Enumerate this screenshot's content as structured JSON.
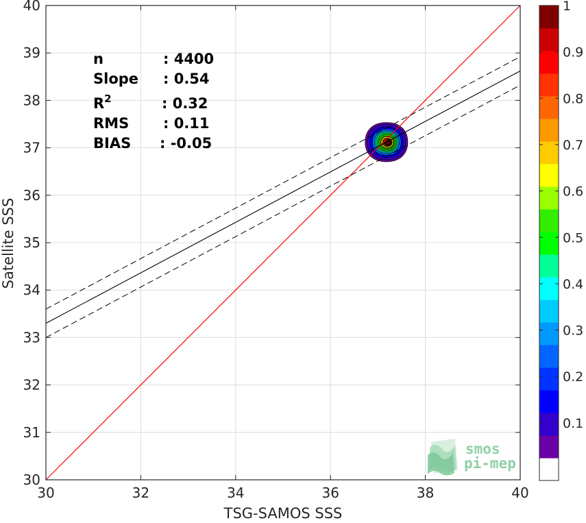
{
  "chart_data": {
    "type": "scatter",
    "subtype": "density-contour",
    "xlabel": "TSG-SAMOS SSS",
    "ylabel": "Satellite SSS",
    "xlim": [
      30,
      40
    ],
    "ylim": [
      30,
      40
    ],
    "x_ticks": [
      "30",
      "32",
      "34",
      "36",
      "38",
      "40"
    ],
    "y_ticks": [
      "30",
      "31",
      "32",
      "33",
      "34",
      "35",
      "36",
      "37",
      "38",
      "39",
      "40"
    ],
    "grid": true,
    "density_center": [
      37.18,
      37.12
    ],
    "reference_line": {
      "name": "1:1",
      "slope": 1,
      "intercept": 0,
      "color": "#ff0000"
    },
    "fit_line": {
      "slope": 0.54,
      "y_at_30": 33.3,
      "y_at_40": 38.62,
      "color": "#000000"
    },
    "fit_band": {
      "offset": 0.3,
      "style": "dashed"
    },
    "stats": [
      {
        "label": "n",
        "sup": "",
        "value": ": 4400"
      },
      {
        "label": "Slope",
        "sup": "",
        "value": ": 0.54"
      },
      {
        "label": "R",
        "sup": "2",
        "value": ": 0.32"
      },
      {
        "label": "RMS",
        "sup": "",
        "value": ": 0.11"
      },
      {
        "label": "BIAS",
        "sup": "",
        "value": ": -0.05"
      }
    ],
    "colorbar": {
      "ticks": [
        "0.1",
        "0.2",
        "0.3",
        "0.4",
        "0.5",
        "0.6",
        "0.7",
        "0.8",
        "0.9",
        "1"
      ],
      "range": [
        0,
        1
      ],
      "colors": [
        "#ffffff",
        "#6a00a8",
        "#3300cc",
        "#0000ff",
        "#0033ff",
        "#0066ff",
        "#0099ff",
        "#00ccff",
        "#00ffff",
        "#00ff99",
        "#00ff00",
        "#33ee00",
        "#99ff00",
        "#ffff00",
        "#ffcc00",
        "#ff9900",
        "#ff6600",
        "#ff3300",
        "#ff0000",
        "#cc0000",
        "#800000"
      ]
    }
  },
  "logo": {
    "line1": "smos",
    "line2": "pi-mep"
  }
}
